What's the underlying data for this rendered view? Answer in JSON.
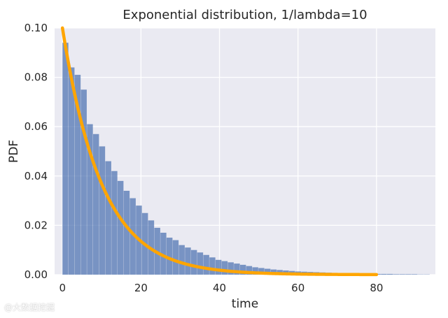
{
  "chart_data": {
    "type": "bar",
    "title": "Exponential distribution, 1/lambda=10",
    "xlabel": "time",
    "ylabel": "PDF",
    "xlim": [
      -2,
      95
    ],
    "ylim": [
      0,
      0.1
    ],
    "xticks": [
      0,
      20,
      40,
      60,
      80
    ],
    "yticks": [
      0.0,
      0.02,
      0.04,
      0.06,
      0.08,
      0.1
    ],
    "ytick_labels": [
      "0.00",
      "0.02",
      "0.04",
      "0.06",
      "0.08",
      "0.10"
    ],
    "grid": true,
    "background": "#EAEAF2",
    "series": [
      {
        "type": "histogram",
        "color": "#4C72B0",
        "bin_width": 1.56,
        "bin_start": 0,
        "values": [
          0.094,
          0.084,
          0.081,
          0.075,
          0.061,
          0.057,
          0.052,
          0.046,
          0.042,
          0.038,
          0.034,
          0.031,
          0.028,
          0.025,
          0.022,
          0.019,
          0.017,
          0.015,
          0.014,
          0.012,
          0.011,
          0.01,
          0.009,
          0.008,
          0.007,
          0.006,
          0.0055,
          0.005,
          0.0045,
          0.004,
          0.0035,
          0.003,
          0.0027,
          0.0024,
          0.0021,
          0.0019,
          0.0017,
          0.0015,
          0.0013,
          0.0012,
          0.0011,
          0.001,
          0.0009,
          0.0008,
          0.0007,
          0.0006,
          0.0006,
          0.0005,
          0.0005,
          0.0004,
          0.0004,
          0.0003,
          0.0003,
          0.0003,
          0.0002,
          0.0002,
          0.0002,
          0.0002,
          0.0001,
          0.0001
        ]
      },
      {
        "type": "line",
        "color": "#FFA500",
        "function": "exponential_pdf",
        "scale": 10,
        "x_range": [
          0,
          80
        ]
      }
    ]
  },
  "watermark": "@大数据挖掘"
}
